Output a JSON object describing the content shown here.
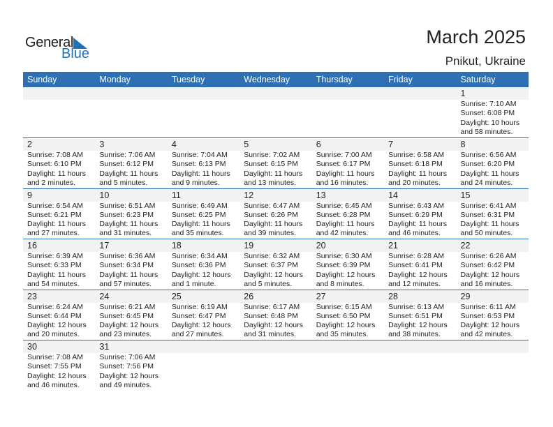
{
  "logo": {
    "text_general": "General",
    "text_blue": "Blue",
    "accent": "#1f72b8"
  },
  "header": {
    "title": "March 2025",
    "location": "Pnikut, Ukraine"
  },
  "colors": {
    "header_bg": "#2e70b1",
    "day_band": "#f2f2f2"
  },
  "weekdays": [
    "Sunday",
    "Monday",
    "Tuesday",
    "Wednesday",
    "Thursday",
    "Friday",
    "Saturday"
  ],
  "weeks": [
    [
      null,
      null,
      null,
      null,
      null,
      null,
      {
        "day": "1",
        "sunrise": "Sunrise: 7:10 AM",
        "sunset": "Sunset: 6:08 PM",
        "daylight1": "Daylight: 10 hours",
        "daylight2": "and 58 minutes."
      }
    ],
    [
      {
        "day": "2",
        "sunrise": "Sunrise: 7:08 AM",
        "sunset": "Sunset: 6:10 PM",
        "daylight1": "Daylight: 11 hours",
        "daylight2": "and 2 minutes."
      },
      {
        "day": "3",
        "sunrise": "Sunrise: 7:06 AM",
        "sunset": "Sunset: 6:12 PM",
        "daylight1": "Daylight: 11 hours",
        "daylight2": "and 5 minutes."
      },
      {
        "day": "4",
        "sunrise": "Sunrise: 7:04 AM",
        "sunset": "Sunset: 6:13 PM",
        "daylight1": "Daylight: 11 hours",
        "daylight2": "and 9 minutes."
      },
      {
        "day": "5",
        "sunrise": "Sunrise: 7:02 AM",
        "sunset": "Sunset: 6:15 PM",
        "daylight1": "Daylight: 11 hours",
        "daylight2": "and 13 minutes."
      },
      {
        "day": "6",
        "sunrise": "Sunrise: 7:00 AM",
        "sunset": "Sunset: 6:17 PM",
        "daylight1": "Daylight: 11 hours",
        "daylight2": "and 16 minutes."
      },
      {
        "day": "7",
        "sunrise": "Sunrise: 6:58 AM",
        "sunset": "Sunset: 6:18 PM",
        "daylight1": "Daylight: 11 hours",
        "daylight2": "and 20 minutes."
      },
      {
        "day": "8",
        "sunrise": "Sunrise: 6:56 AM",
        "sunset": "Sunset: 6:20 PM",
        "daylight1": "Daylight: 11 hours",
        "daylight2": "and 24 minutes."
      }
    ],
    [
      {
        "day": "9",
        "sunrise": "Sunrise: 6:54 AM",
        "sunset": "Sunset: 6:21 PM",
        "daylight1": "Daylight: 11 hours",
        "daylight2": "and 27 minutes."
      },
      {
        "day": "10",
        "sunrise": "Sunrise: 6:51 AM",
        "sunset": "Sunset: 6:23 PM",
        "daylight1": "Daylight: 11 hours",
        "daylight2": "and 31 minutes."
      },
      {
        "day": "11",
        "sunrise": "Sunrise: 6:49 AM",
        "sunset": "Sunset: 6:25 PM",
        "daylight1": "Daylight: 11 hours",
        "daylight2": "and 35 minutes."
      },
      {
        "day": "12",
        "sunrise": "Sunrise: 6:47 AM",
        "sunset": "Sunset: 6:26 PM",
        "daylight1": "Daylight: 11 hours",
        "daylight2": "and 39 minutes."
      },
      {
        "day": "13",
        "sunrise": "Sunrise: 6:45 AM",
        "sunset": "Sunset: 6:28 PM",
        "daylight1": "Daylight: 11 hours",
        "daylight2": "and 42 minutes."
      },
      {
        "day": "14",
        "sunrise": "Sunrise: 6:43 AM",
        "sunset": "Sunset: 6:29 PM",
        "daylight1": "Daylight: 11 hours",
        "daylight2": "and 46 minutes."
      },
      {
        "day": "15",
        "sunrise": "Sunrise: 6:41 AM",
        "sunset": "Sunset: 6:31 PM",
        "daylight1": "Daylight: 11 hours",
        "daylight2": "and 50 minutes."
      }
    ],
    [
      {
        "day": "16",
        "sunrise": "Sunrise: 6:39 AM",
        "sunset": "Sunset: 6:33 PM",
        "daylight1": "Daylight: 11 hours",
        "daylight2": "and 54 minutes."
      },
      {
        "day": "17",
        "sunrise": "Sunrise: 6:36 AM",
        "sunset": "Sunset: 6:34 PM",
        "daylight1": "Daylight: 11 hours",
        "daylight2": "and 57 minutes."
      },
      {
        "day": "18",
        "sunrise": "Sunrise: 6:34 AM",
        "sunset": "Sunset: 6:36 PM",
        "daylight1": "Daylight: 12 hours",
        "daylight2": "and 1 minute."
      },
      {
        "day": "19",
        "sunrise": "Sunrise: 6:32 AM",
        "sunset": "Sunset: 6:37 PM",
        "daylight1": "Daylight: 12 hours",
        "daylight2": "and 5 minutes."
      },
      {
        "day": "20",
        "sunrise": "Sunrise: 6:30 AM",
        "sunset": "Sunset: 6:39 PM",
        "daylight1": "Daylight: 12 hours",
        "daylight2": "and 8 minutes."
      },
      {
        "day": "21",
        "sunrise": "Sunrise: 6:28 AM",
        "sunset": "Sunset: 6:41 PM",
        "daylight1": "Daylight: 12 hours",
        "daylight2": "and 12 minutes."
      },
      {
        "day": "22",
        "sunrise": "Sunrise: 6:26 AM",
        "sunset": "Sunset: 6:42 PM",
        "daylight1": "Daylight: 12 hours",
        "daylight2": "and 16 minutes."
      }
    ],
    [
      {
        "day": "23",
        "sunrise": "Sunrise: 6:24 AM",
        "sunset": "Sunset: 6:44 PM",
        "daylight1": "Daylight: 12 hours",
        "daylight2": "and 20 minutes."
      },
      {
        "day": "24",
        "sunrise": "Sunrise: 6:21 AM",
        "sunset": "Sunset: 6:45 PM",
        "daylight1": "Daylight: 12 hours",
        "daylight2": "and 23 minutes."
      },
      {
        "day": "25",
        "sunrise": "Sunrise: 6:19 AM",
        "sunset": "Sunset: 6:47 PM",
        "daylight1": "Daylight: 12 hours",
        "daylight2": "and 27 minutes."
      },
      {
        "day": "26",
        "sunrise": "Sunrise: 6:17 AM",
        "sunset": "Sunset: 6:48 PM",
        "daylight1": "Daylight: 12 hours",
        "daylight2": "and 31 minutes."
      },
      {
        "day": "27",
        "sunrise": "Sunrise: 6:15 AM",
        "sunset": "Sunset: 6:50 PM",
        "daylight1": "Daylight: 12 hours",
        "daylight2": "and 35 minutes."
      },
      {
        "day": "28",
        "sunrise": "Sunrise: 6:13 AM",
        "sunset": "Sunset: 6:51 PM",
        "daylight1": "Daylight: 12 hours",
        "daylight2": "and 38 minutes."
      },
      {
        "day": "29",
        "sunrise": "Sunrise: 6:11 AM",
        "sunset": "Sunset: 6:53 PM",
        "daylight1": "Daylight: 12 hours",
        "daylight2": "and 42 minutes."
      }
    ],
    [
      {
        "day": "30",
        "sunrise": "Sunrise: 7:08 AM",
        "sunset": "Sunset: 7:55 PM",
        "daylight1": "Daylight: 12 hours",
        "daylight2": "and 46 minutes."
      },
      {
        "day": "31",
        "sunrise": "Sunrise: 7:06 AM",
        "sunset": "Sunset: 7:56 PM",
        "daylight1": "Daylight: 12 hours",
        "daylight2": "and 49 minutes."
      },
      null,
      null,
      null,
      null,
      null
    ]
  ]
}
